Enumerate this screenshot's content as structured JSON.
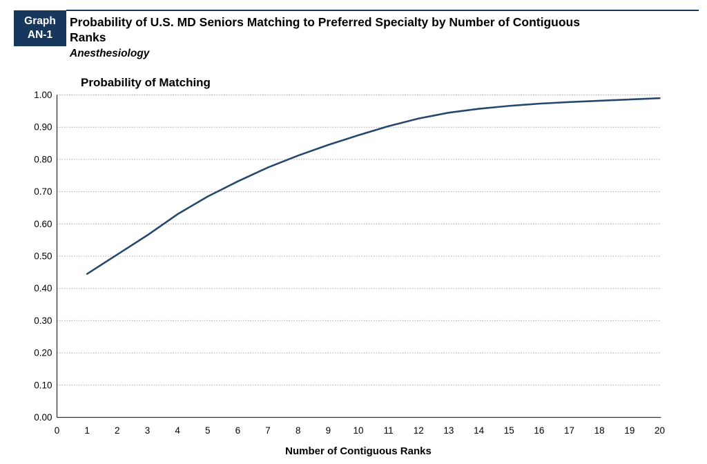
{
  "header": {
    "badge_line1": "Graph",
    "badge_line2": "AN-1",
    "title_line1": "Probability of U.S. MD Seniors Matching to Preferred Specialty by Number of Contiguous",
    "title_line2": "Ranks",
    "subtitle": "Anesthesiology"
  },
  "colors": {
    "badge_bg": "#17375D",
    "header_rule": "#17375D",
    "curve": "#26486E",
    "grid": "#A6A6A6",
    "axis": "#333333",
    "text": "#000000"
  },
  "chart_data": {
    "type": "line",
    "title": "Probability of Matching",
    "xlabel": "Number of Contiguous Ranks",
    "ylabel": "",
    "series_name": "Probability of matching to preferred specialty",
    "x": [
      1,
      2,
      3,
      4,
      5,
      6,
      7,
      8,
      9,
      10,
      11,
      12,
      13,
      14,
      15,
      16,
      17,
      18,
      19,
      20
    ],
    "values": [
      0.445,
      0.505,
      0.565,
      0.63,
      0.685,
      0.732,
      0.775,
      0.812,
      0.845,
      0.875,
      0.903,
      0.927,
      0.945,
      0.957,
      0.966,
      0.973,
      0.978,
      0.982,
      0.986,
      0.99
    ],
    "xlim": [
      0,
      20
    ],
    "ylim": [
      0,
      1
    ],
    "x_ticks": [
      0,
      1,
      2,
      3,
      4,
      5,
      6,
      7,
      8,
      9,
      10,
      11,
      12,
      13,
      14,
      15,
      16,
      17,
      18,
      19,
      20
    ],
    "y_ticks": [
      "0.00",
      "0.10",
      "0.20",
      "0.30",
      "0.40",
      "0.50",
      "0.60",
      "0.70",
      "0.80",
      "0.90",
      "1.00"
    ],
    "grid": "horizontal-dotted",
    "legend": "none"
  }
}
